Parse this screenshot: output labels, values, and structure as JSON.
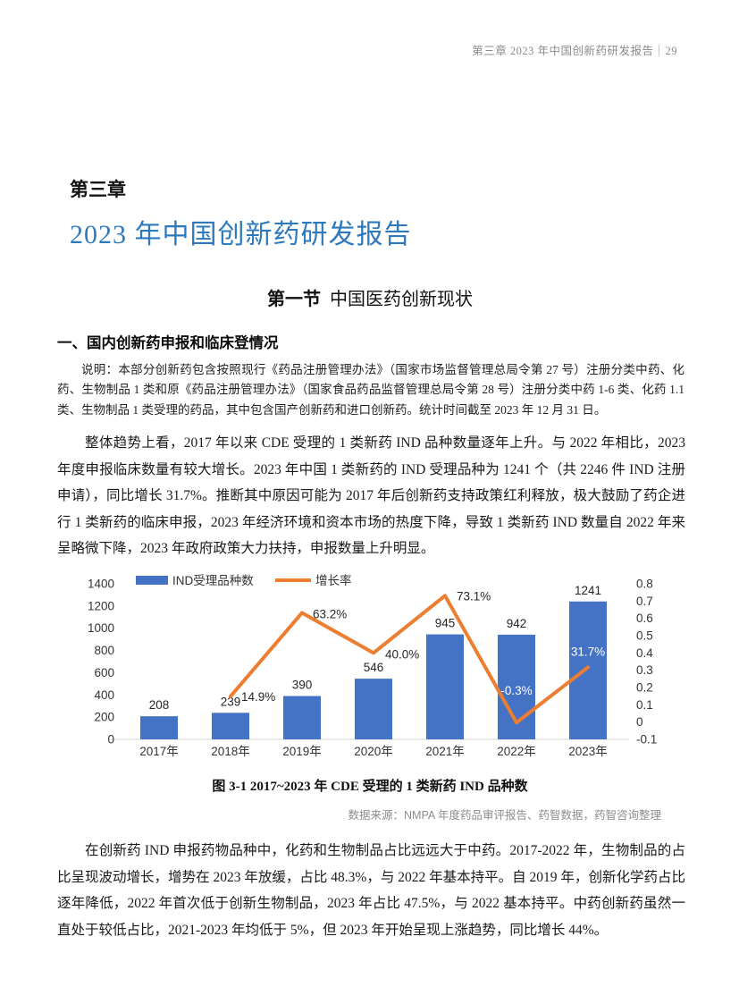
{
  "header": {
    "text": "第三章 2023 年中国创新药研发报告｜29"
  },
  "chapter": {
    "kicker": "第三章",
    "title": "2023 年中国创新药研发报告"
  },
  "section": {
    "prefix": "第一节",
    "title": "中国医药创新现状"
  },
  "subsection": {
    "title": "一、国内创新药申报和临床登情况"
  },
  "note": "说明：本部分创新药包含按照现行《药品注册管理办法》（国家市场监督管理总局令第 27 号）注册分类中药、化药、生物制品 1 类和原《药品注册管理办法》（国家食品药品监督管理总局令第 28 号）注册分类中药 1-6 类、化药 1.1 类、生物制品 1 类受理的药品，其中包含国产创新药和进口创新药。统计时间截至 2023 年 12 月 31 日。",
  "paragraph1": "整体趋势上看，2017 年以来 CDE 受理的 1 类新药 IND 品种数量逐年上升。与 2022 年相比，2023 年度申报临床数量有较大增长。2023 年中国 1 类新药的 IND 受理品种为 1241 个（共 2246 件 IND 注册申请），同比增长 31.7%。推断其中原因可能为 2017 年后创新药支持政策红利释放，极大鼓励了药企进行 1 类新药的临床申报，2023 年经济环境和资本市场的热度下降，导致 1 类新药 IND 数量自 2022 年来呈略微下降，2023 年政府政策大力扶持，申报数量上升明显。",
  "chart_caption": "图 3-1  2017~2023 年 CDE 受理的 1 类新药 IND 品种数",
  "chart_source": "数据来源：NMPA 年度药品审评报告、药智数据，药智咨询整理",
  "paragraph2": "在创新药 IND 申报药物品种中，化药和生物制品占比远远大于中药。2017-2022 年，生物制品的占比呈现波动增长，增势在 2023 年放缓，占比 48.3%，与 2022 年基本持平。自 2019 年，创新化学药占比逐年降低，2022 年首次低于创新生物制品，2023 年占比 47.5%，与 2022 基本持平。中药创新药虽然一直处于较低占比，2021-2023 年均低于 5%，但 2023 年开始呈现上涨趋势，同比增长 44%。",
  "colors": {
    "bar": "#4472C4",
    "line": "#ED7D31",
    "title_blue": "#2e79bc",
    "axis_text": "#333333",
    "baseline": "#d6d6d6"
  },
  "chart_data": {
    "type": "bar",
    "title": "",
    "xlabel": "",
    "ylabel": "",
    "categories": [
      "2017年",
      "2018年",
      "2019年",
      "2020年",
      "2021年",
      "2022年",
      "2023年"
    ],
    "series": [
      {
        "name": "IND受理品种数",
        "kind": "bar",
        "axis": "left",
        "color": "#4472C4",
        "values": [
          208,
          239,
          390,
          546,
          945,
          942,
          1241
        ]
      },
      {
        "name": "增长率",
        "kind": "line",
        "axis": "right",
        "color": "#ED7D31",
        "values": [
          null,
          0.149,
          0.632,
          0.4,
          0.731,
          -0.003,
          0.317
        ],
        "point_labels": [
          null,
          "14.9%",
          "63.2%",
          "40.0%",
          "73.1%",
          "-0.3%",
          "31.7%"
        ]
      }
    ],
    "left_axis": {
      "min": 0,
      "max": 1400,
      "step": 200
    },
    "right_axis": {
      "min": -0.1,
      "max": 0.8,
      "step": 0.1
    },
    "legend_position": "top",
    "grid": false
  }
}
